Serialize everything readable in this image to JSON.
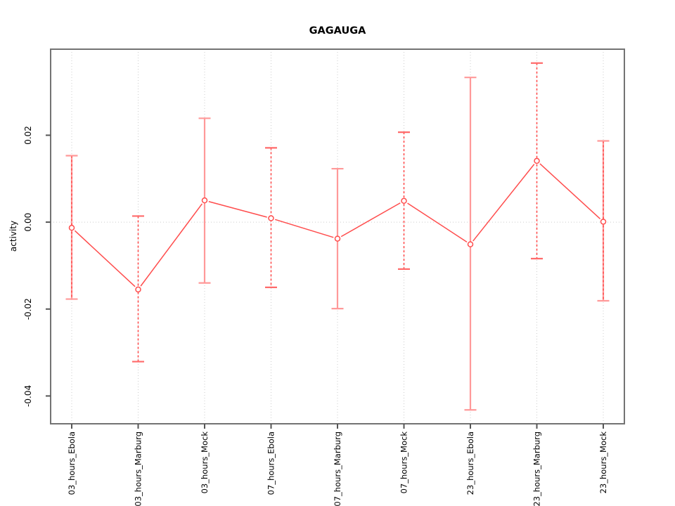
{
  "figure": {
    "background": "#ffffff"
  },
  "chart_data": {
    "type": "line",
    "title": "GAGAUGA",
    "xlabel": "",
    "ylabel": "activity",
    "legend": "none",
    "categories": [
      "03_hours_Ebola",
      "03_hours_Marburg",
      "03_hours_Mock",
      "07_hours_Ebola",
      "07_hours_Marburg",
      "07_hours_Mock",
      "23_hours_Ebola",
      "23_hours_Marburg",
      "23_hours_Mock"
    ],
    "series": [
      {
        "name": "activity",
        "values": [
          -0.0013,
          -0.0155,
          0.005,
          0.0009,
          -0.0038,
          0.0049,
          -0.0051,
          0.0141,
          0.0001
        ],
        "upper": [
          0.0153,
          0.0014,
          0.0239,
          0.0171,
          0.0123,
          0.0207,
          0.0333,
          0.0366,
          0.0187
        ],
        "lower": [
          -0.0177,
          -0.0321,
          -0.014,
          -0.015,
          -0.0199,
          -0.0108,
          -0.0432,
          -0.0084,
          -0.0181
        ]
      }
    ],
    "errorbar_styles": [
      "solid-dashed",
      "dashed",
      "solid",
      "dashed",
      "solid",
      "dashed",
      "solid",
      "dashed",
      "solid-dashed"
    ],
    "ylim": [
      -0.0464,
      0.0398
    ],
    "yticks": [
      -0.04,
      -0.02,
      0,
      0.02
    ],
    "ytick_labels": [
      "-0.04",
      "-0.02",
      "0.00",
      "0.02"
    ],
    "grid": {
      "vertical": "per-category",
      "horizontal_at": [
        0
      ],
      "style": "dotted"
    },
    "colors": {
      "point": "#ff4d4d",
      "series_line": "#ff4d4d",
      "errorbar_solid": "#ff9999",
      "errorbar_dashed": "#ff4d4d",
      "grid": "#cccccc",
      "box": "#737373",
      "tick": "#555555",
      "text": "#000000",
      "title": "#000000"
    }
  }
}
